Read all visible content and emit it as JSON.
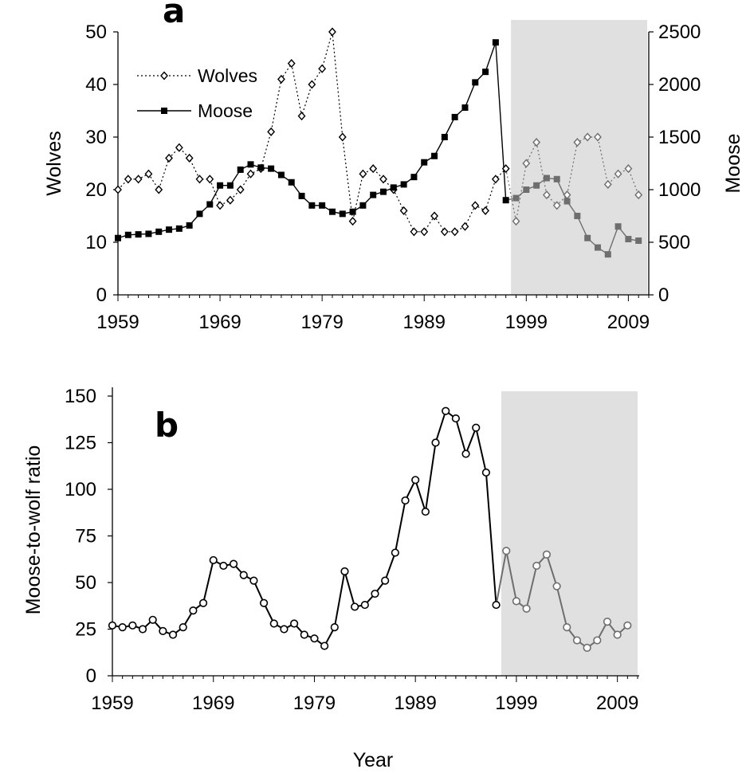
{
  "chart_data": [
    {
      "type": "line",
      "panel_label": "a",
      "shaded_from_year": 1997.5,
      "x_ticks": [
        "1959",
        "1969",
        "1979",
        "1989",
        "1999",
        "2009"
      ],
      "xlim": [
        1959,
        2011
      ],
      "ylabel_left": "Wolves",
      "ylabel_right": "Moose",
      "ylim_left": [
        0,
        50
      ],
      "ylim_right": [
        0,
        2500
      ],
      "y_ticks_left": [
        "0",
        "10",
        "20",
        "30",
        "40",
        "50"
      ],
      "y_ticks_right": [
        "0",
        "500",
        "1000",
        "1500",
        "2000",
        "2500"
      ],
      "legend_position": "top-left",
      "series": [
        {
          "name": "Wolves",
          "axis": "left",
          "marker": "open-diamond",
          "line": "dotted",
          "color": "#000000",
          "x": [
            1959,
            1960,
            1961,
            1962,
            1963,
            1964,
            1965,
            1966,
            1967,
            1968,
            1969,
            1970,
            1971,
            1972,
            1973,
            1974,
            1975,
            1976,
            1977,
            1978,
            1979,
            1980,
            1981,
            1982,
            1983,
            1984,
            1985,
            1986,
            1987,
            1988,
            1989,
            1990,
            1991,
            1992,
            1993,
            1994,
            1995,
            1996,
            1997,
            1998,
            1999,
            2000,
            2001,
            2002,
            2003,
            2004,
            2005,
            2006,
            2007,
            2008,
            2009,
            2010
          ],
          "values": [
            20,
            22,
            22,
            23,
            20,
            26,
            28,
            26,
            22,
            22,
            17,
            18,
            20,
            23,
            24,
            31,
            41,
            44,
            34,
            40,
            43,
            50,
            30,
            14,
            23,
            24,
            22,
            20,
            16,
            12,
            12,
            15,
            12,
            12,
            13,
            17,
            16,
            22,
            24,
            14,
            25,
            29,
            19,
            17,
            19,
            29,
            30,
            30,
            21,
            23,
            24,
            19
          ]
        },
        {
          "name": "Moose",
          "axis": "right",
          "marker": "filled-square",
          "line": "solid",
          "color": "#000000",
          "x": [
            1959,
            1960,
            1961,
            1962,
            1963,
            1964,
            1965,
            1966,
            1967,
            1968,
            1969,
            1970,
            1971,
            1972,
            1973,
            1974,
            1975,
            1976,
            1977,
            1978,
            1979,
            1980,
            1981,
            1982,
            1983,
            1984,
            1985,
            1986,
            1987,
            1988,
            1989,
            1990,
            1991,
            1992,
            1993,
            1994,
            1995,
            1996,
            1997,
            1998,
            1999,
            2000,
            2001,
            2002,
            2003,
            2004,
            2005,
            2006,
            2007,
            2008,
            2009,
            2010
          ],
          "values": [
            540,
            570,
            575,
            580,
            600,
            620,
            630,
            660,
            770,
            860,
            1040,
            1040,
            1190,
            1240,
            1210,
            1200,
            1140,
            1070,
            940,
            850,
            850,
            790,
            770,
            790,
            850,
            950,
            980,
            1020,
            1050,
            1120,
            1260,
            1320,
            1500,
            1690,
            1780,
            2020,
            2120,
            2400,
            900,
            920,
            1000,
            1040,
            1110,
            1100,
            890,
            750,
            540,
            450,
            385,
            650,
            530,
            515
          ]
        }
      ]
    },
    {
      "type": "line",
      "panel_label": "b",
      "shaded_from_year": 1997.5,
      "x_ticks": [
        "1959",
        "1969",
        "1979",
        "1989",
        "1999",
        "2009"
      ],
      "xlim": [
        1959,
        2011
      ],
      "xlabel": "Year",
      "ylabel": "Moose-to-wolf ratio",
      "ylim": [
        0,
        150
      ],
      "y_ticks": [
        "0",
        "25",
        "50",
        "75",
        "100",
        "125",
        "150"
      ],
      "series": [
        {
          "marker": "open-circle",
          "line": "solid",
          "color": "#000000",
          "x": [
            1959,
            1960,
            1961,
            1962,
            1963,
            1964,
            1965,
            1966,
            1967,
            1968,
            1969,
            1970,
            1971,
            1972,
            1973,
            1974,
            1975,
            1976,
            1977,
            1978,
            1979,
            1980,
            1981,
            1982,
            1983,
            1984,
            1985,
            1986,
            1987,
            1988,
            1989,
            1990,
            1991,
            1992,
            1993,
            1994,
            1995,
            1996,
            1997,
            1998,
            1999,
            2000,
            2001,
            2002,
            2003,
            2004,
            2005,
            2006,
            2007,
            2008,
            2009,
            2010
          ],
          "values": [
            27,
            26,
            27,
            25,
            30,
            24,
            22,
            26,
            35,
            39,
            62,
            59,
            60,
            54,
            51,
            39,
            28,
            25,
            28,
            22,
            20,
            16,
            26,
            56,
            37,
            38,
            44,
            51,
            66,
            94,
            105,
            88,
            125,
            142,
            138,
            119,
            133,
            109,
            38,
            67,
            40,
            36,
            59,
            65,
            48,
            26,
            19,
            15,
            19,
            29,
            22,
            27
          ]
        }
      ]
    }
  ],
  "colors": {
    "shade": "#e0e0e0",
    "series_pre": "#000000",
    "series_post": "#6e6e6e"
  }
}
